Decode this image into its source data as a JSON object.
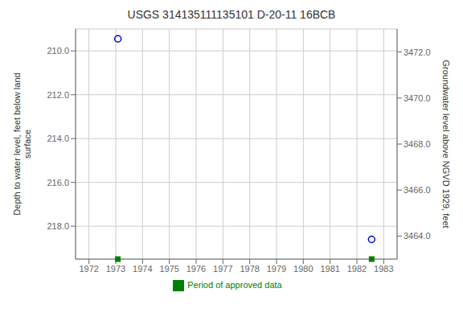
{
  "chart_data": {
    "type": "scatter",
    "title": "USGS 314135111135101 D-20-11 16BCB",
    "x": [
      1973.08,
      1982.55
    ],
    "series": [
      {
        "color": "#0000cd",
        "marker": "circle",
        "values": [
          209.45,
          218.6
        ]
      },
      {
        "name": "Period of approved data",
        "color": "#008000",
        "marker": "square",
        "values": [
          219.5,
          219.5
        ]
      }
    ],
    "xlim": [
      1971.5,
      1983.5
    ],
    "xticks": [
      1972,
      1973,
      1974,
      1975,
      1976,
      1977,
      1978,
      1979,
      1980,
      1981,
      1982,
      1983
    ],
    "ylim": [
      219.5,
      209.0
    ],
    "yticks": [
      {
        "value": 210.0,
        "label": "210.0"
      },
      {
        "value": 212.0,
        "label": "212.0"
      },
      {
        "value": 214.0,
        "label": "214.0"
      },
      {
        "value": 216.0,
        "label": "216.0"
      },
      {
        "value": 218.0,
        "label": "218.0"
      }
    ],
    "y2lim": [
      3463.0,
      3473.0
    ],
    "y2ticks": [
      {
        "value": 3472.0,
        "label": "3472.0"
      },
      {
        "value": 3470.0,
        "label": "3470.0"
      },
      {
        "value": 3468.0,
        "label": "3468.0"
      },
      {
        "value": 3466.0,
        "label": "3466.0"
      },
      {
        "value": 3464.0,
        "label": "3464.0"
      }
    ],
    "y_label": "Depth to water level, feet below land\nsurface",
    "y2_label": "Groundwater level above NGVD 1929, feet",
    "grid": true
  }
}
